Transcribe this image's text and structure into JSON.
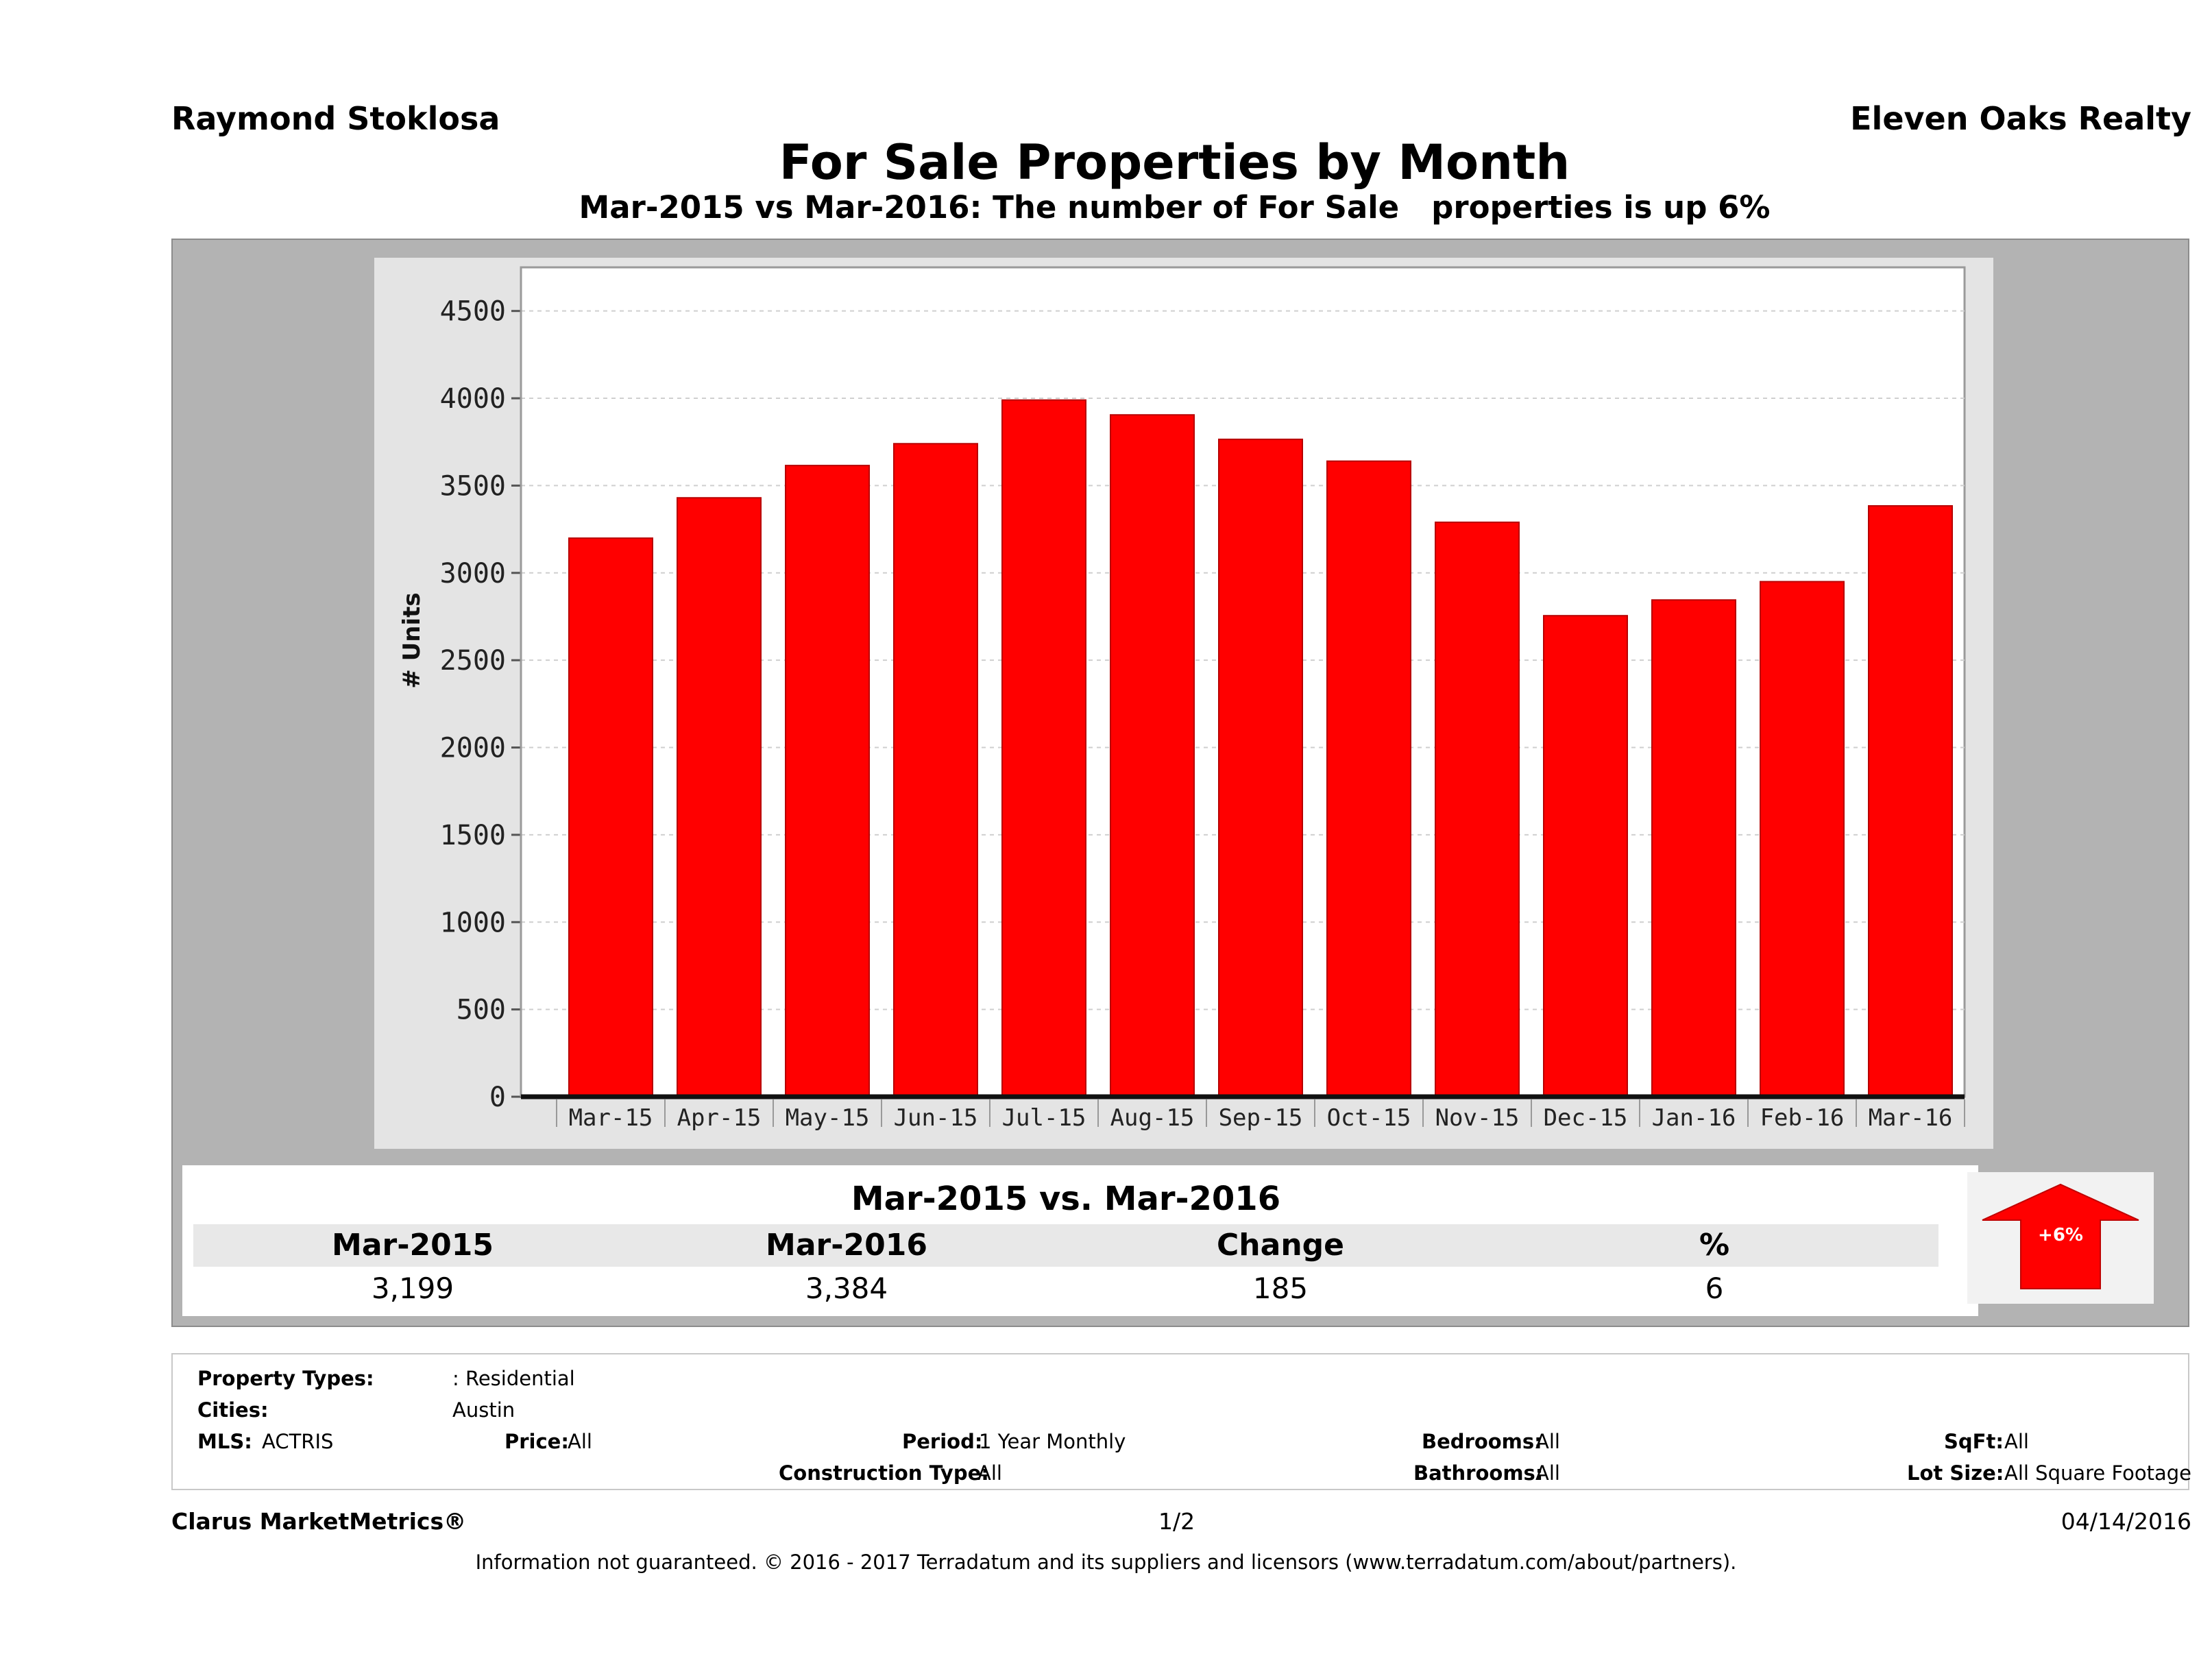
{
  "header": {
    "agent": "Raymond Stoklosa",
    "brokerage": "Eleven Oaks Realty",
    "title": "For Sale Properties by Month",
    "subtitle": "Mar-2015 vs Mar-2016: The number of For Sale   properties is up 6%"
  },
  "chart_data": {
    "type": "bar",
    "title": "For Sale Properties by Month",
    "ylabel": "# Units",
    "xlabel": "",
    "ylim": [
      0,
      4750
    ],
    "yticks": [
      0,
      500,
      1000,
      1500,
      2000,
      2500,
      3000,
      3500,
      4000,
      4500
    ],
    "ytick_labels": [
      "0",
      "500",
      "1000",
      "1500",
      "2000",
      "2500",
      "3000",
      "3500",
      "4000",
      "4500"
    ],
    "categories": [
      "Mar-15",
      "Apr-15",
      "May-15",
      "Jun-15",
      "Jul-15",
      "Aug-15",
      "Sep-15",
      "Oct-15",
      "Nov-15",
      "Dec-15",
      "Jan-16",
      "Feb-16",
      "Mar-16"
    ],
    "values": [
      3199,
      3430,
      3615,
      3740,
      3990,
      3905,
      3765,
      3640,
      3290,
      2755,
      2845,
      2950,
      3384
    ],
    "bar_color": "#ff0000",
    "grid": true
  },
  "summary": {
    "title": "Mar-2015 vs. Mar-2016",
    "headers": [
      "Mar-2015",
      "Mar-2016",
      "Change",
      "%"
    ],
    "values": [
      "3,199",
      "3,384",
      "185",
      "6"
    ],
    "badge": "+6%",
    "badge_color": "#ff0000"
  },
  "filters": {
    "property_types_label": "Property Types:",
    "property_types_value": ": Residential",
    "cities_label": "Cities:",
    "cities_value": "Austin",
    "mls_label": "MLS:",
    "mls_value": "ACTRIS",
    "price_label": "Price:",
    "price_value": "All",
    "period_label": "Period:",
    "period_value": "1 Year Monthly",
    "construction_label": "Construction Type:",
    "construction_value": "All",
    "bedrooms_label": "Bedrooms:",
    "bedrooms_value": "All",
    "bathrooms_label": "Bathrooms:",
    "bathrooms_value": "All",
    "sqft_label": "SqFt:",
    "sqft_value": "All",
    "lot_label": "Lot Size:",
    "lot_value": "All Square Footage"
  },
  "footer": {
    "brand": "Clarus MarketMetrics®",
    "page": "1/2",
    "date": "04/14/2016",
    "note": "Information not guaranteed. © 2016 - 2017 Terradatum and its suppliers and licensors (www.terradatum.com/about/partners)."
  }
}
